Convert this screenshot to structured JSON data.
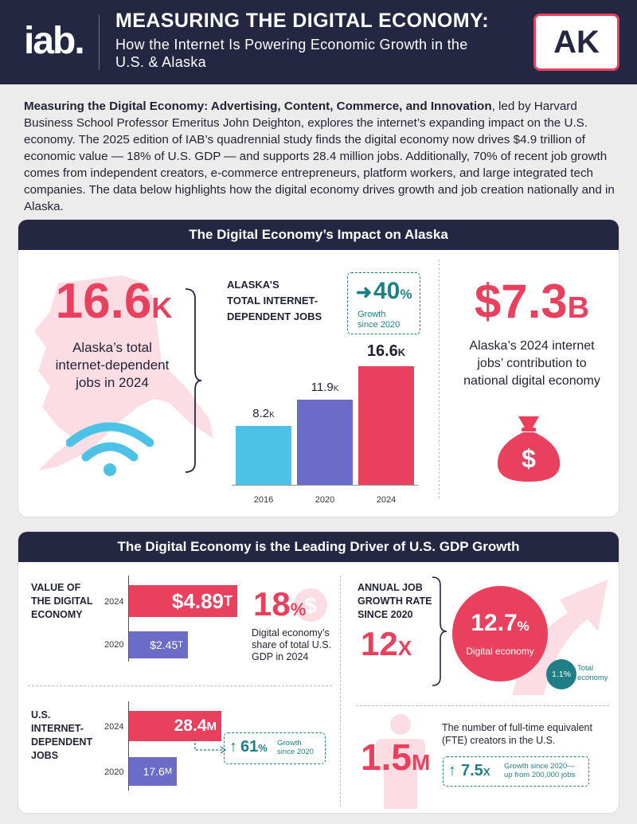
{
  "header": {
    "logo": "iab.",
    "title": "MEASURING THE DIGITAL ECONOMY:",
    "subtitle": "How the Internet Is Powering Economic Growth in the U.S. & Alaska",
    "state": "AK"
  },
  "intro": {
    "bold": "Measuring the Digital Economy: Advertising, Content, Commerce, and Innovation",
    "text": ", led by Harvard Business School Professor Emeritus John Deighton, explores the internet’s expanding impact on the U.S. economy. The 2025 edition of IAB’s quadrennial study finds the digital economy now drives $4.9 trillion of economic value — 18% of U.S. GDP — and supports 28.4 million jobs. Additionally, 70% of recent job growth comes from independent creators, e-commerce entrepreneurs, platform workers, and large integrated tech companies. The data below highlights how the digital economy drives growth and job creation nationally and in Alaska."
  },
  "alaska": {
    "section_title": "The Digital Economy’s Impact on Alaska",
    "big_number": "16.6",
    "big_suffix": "K",
    "big_caption": "Alaska’s total internet-dependent jobs in 2024",
    "chart_title_1": "ALASKA’S",
    "chart_title_2": "TOTAL INTERNET-",
    "chart_title_3": "DEPENDENT JOBS",
    "growth_value": "40",
    "growth_pct": "%",
    "growth_label_1": "Growth",
    "growth_label_2": "since 2020",
    "contribution": "$7.3",
    "contribution_suffix": "B",
    "contribution_caption": "Alaska’s 2024 internet jobs’ contribution to national digital economy",
    "colors": {
      "bar2016": "#4cc3e6",
      "bar2020": "#6b6cc7",
      "bar2024": "#e8405d"
    }
  },
  "chart_data": {
    "type": "bar",
    "title": "ALASKA’S TOTAL INTERNET-DEPENDENT JOBS",
    "categories": [
      "2016",
      "2020",
      "2024"
    ],
    "values": [
      8.2,
      11.9,
      16.6
    ],
    "labels": [
      {
        "num": "8.2",
        "unit": "K"
      },
      {
        "num": "11.9",
        "unit": "K"
      },
      {
        "num": "16.6",
        "unit": "K"
      }
    ],
    "ylim": [
      0,
      20
    ]
  },
  "gdp": {
    "section_title": "The Digital Economy is the Leading Driver of U.S. GDP Growth",
    "value_label_1": "VALUE OF",
    "value_label_2": "THE DIGITAL",
    "value_label_3": "ECONOMY",
    "value_2024_year": "2024",
    "value_2024": "$4.89",
    "value_2024_unit": "T",
    "value_2020_year": "2020",
    "value_2020": "$2.45",
    "value_2020_unit": "T",
    "share_value": "18",
    "share_pct": "%",
    "share_caption": "Digital economy’s share of total U.S. GDP in 2024",
    "jobs_label_1": "U.S.",
    "jobs_label_2": "INTERNET-",
    "jobs_label_3": "DEPENDENT",
    "jobs_label_4": "JOBS",
    "jobs_2024_year": "2024",
    "jobs_2024": "28.4",
    "jobs_2024_unit": "M",
    "jobs_2020_year": "2020",
    "jobs_2020": "17.6",
    "jobs_2020_unit": "M",
    "jobs_growth": "61",
    "jobs_growth_pct": "%",
    "jobs_growth_label_1": "Growth",
    "jobs_growth_label_2": "since 2020",
    "annual_label_1": "ANNUAL JOB",
    "annual_label_2": "GROWTH RATE",
    "annual_label_3": "SINCE 2020",
    "multiplier": "12",
    "multiplier_x": "X",
    "digital_rate": "12.7",
    "digital_rate_pct": "%",
    "digital_rate_label": "Digital economy",
    "total_rate": "1.1%",
    "total_rate_label_1": "Total",
    "total_rate_label_2": "economy",
    "creators_value": "1.5",
    "creators_unit": "M",
    "creators_caption": "The number of full-time equivalent (FTE) creators in the U.S.",
    "creators_growth": "7.5",
    "creators_growth_x": "X",
    "creators_growth_label_1": "Growth since 2020—",
    "creators_growth_label_2": "up from 200,000 jobs"
  }
}
